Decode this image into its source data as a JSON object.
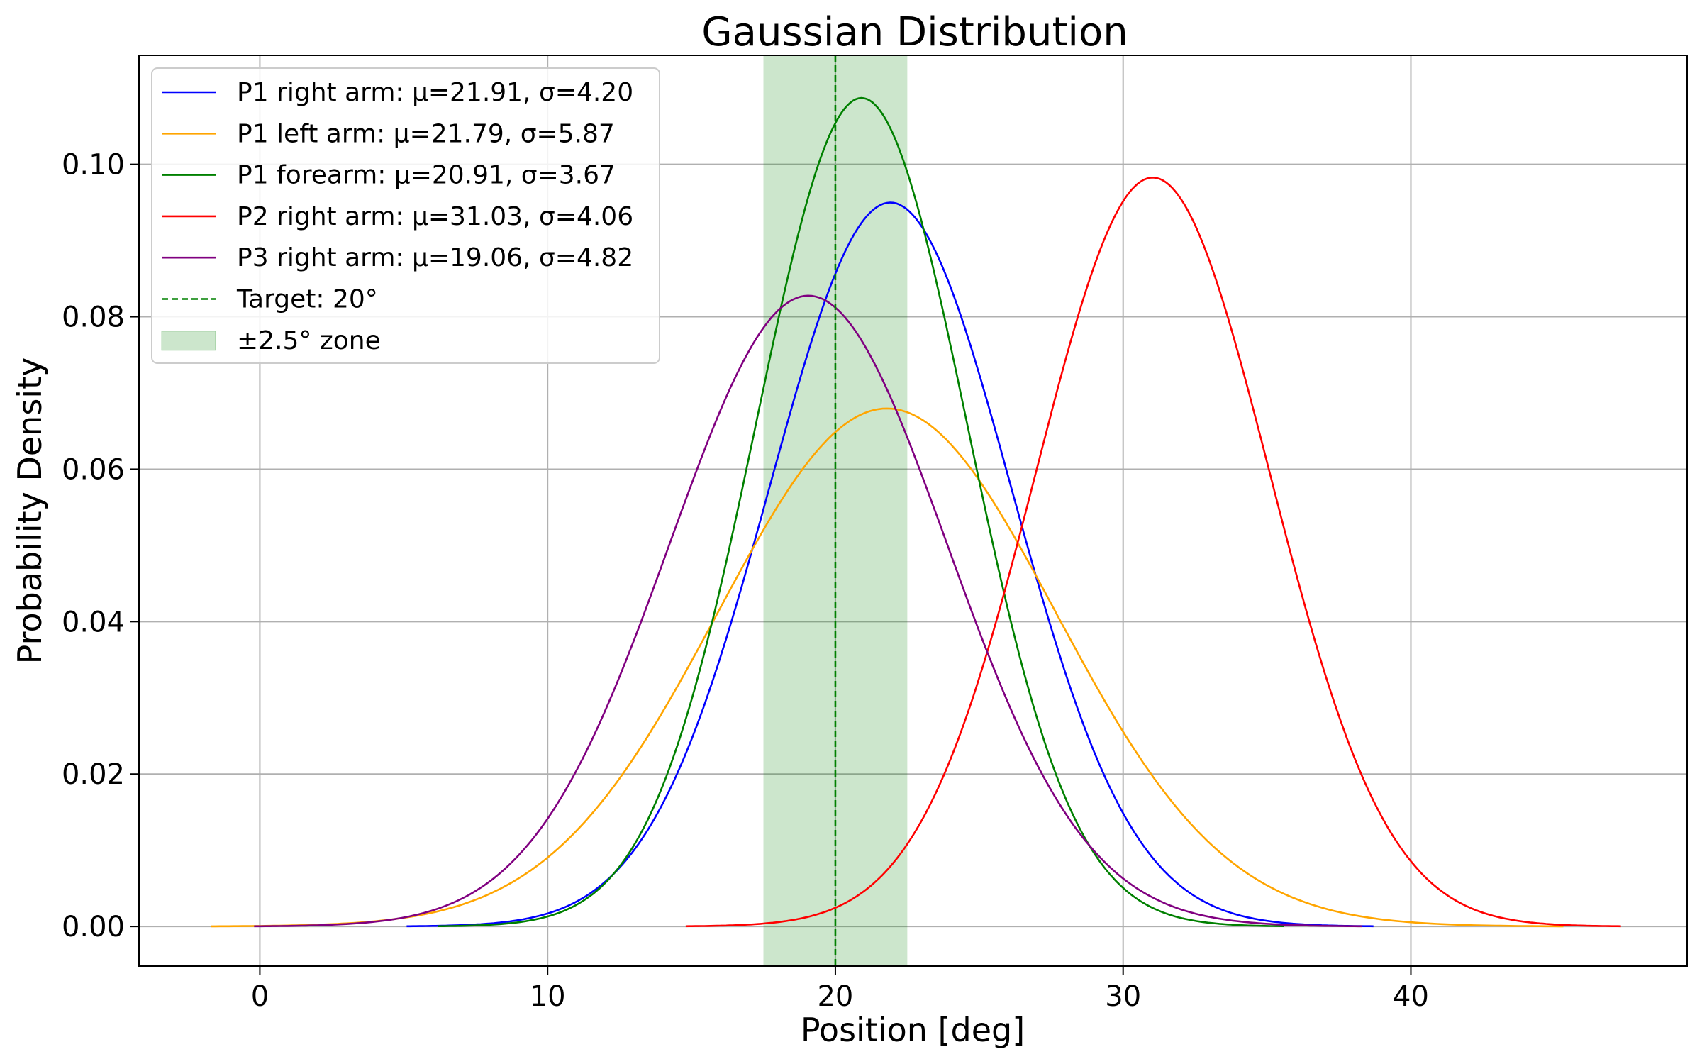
{
  "chart_data": {
    "type": "line",
    "title": "Gaussian Distribution",
    "xlabel": "Position [deg]",
    "ylabel": "Probability Density",
    "xlim": [
      -4.2,
      49.6
    ],
    "ylim": [
      -0.0052,
      0.1143
    ],
    "x_ticks": [
      0,
      10,
      20,
      30,
      40
    ],
    "x_tick_labels": [
      "0",
      "10",
      "20",
      "30",
      "40"
    ],
    "y_ticks": [
      0.0,
      0.02,
      0.04,
      0.06,
      0.08,
      0.1
    ],
    "y_tick_labels": [
      "0.00",
      "0.02",
      "0.04",
      "0.06",
      "0.08",
      "0.10"
    ],
    "grid": true,
    "legend_position": "top-left",
    "series": [
      {
        "name": "P1 right arm: μ=21.91, σ=4.20",
        "mu": 21.91,
        "sigma": 4.2,
        "x_range": [
          5.1,
          38.7
        ],
        "color": "#0000ff"
      },
      {
        "name": "P1 left arm: μ=21.79, σ=5.87",
        "mu": 21.79,
        "sigma": 5.87,
        "x_range": [
          -1.7,
          45.3
        ],
        "color": "#ffa500"
      },
      {
        "name": "P1 forearm: μ=20.91, σ=3.67",
        "mu": 20.91,
        "sigma": 3.67,
        "x_range": [
          6.2,
          35.6
        ],
        "color": "#008000"
      },
      {
        "name": "P2 right arm: μ=31.03, σ=4.06",
        "mu": 31.03,
        "sigma": 4.06,
        "x_range": [
          14.8,
          47.3
        ],
        "color": "#ff0000"
      },
      {
        "name": "P3 right arm: μ=19.06, σ=4.82",
        "mu": 19.06,
        "sigma": 4.82,
        "x_range": [
          -0.2,
          38.3
        ],
        "color": "#800080"
      }
    ],
    "target": {
      "name": "Target: 20°",
      "x": 20,
      "color": "#008000",
      "style": "dashed"
    },
    "zone": {
      "name": "±2.5° zone",
      "x_min": 17.5,
      "x_max": 22.5,
      "color": "#008000",
      "opacity": 0.2
    }
  }
}
